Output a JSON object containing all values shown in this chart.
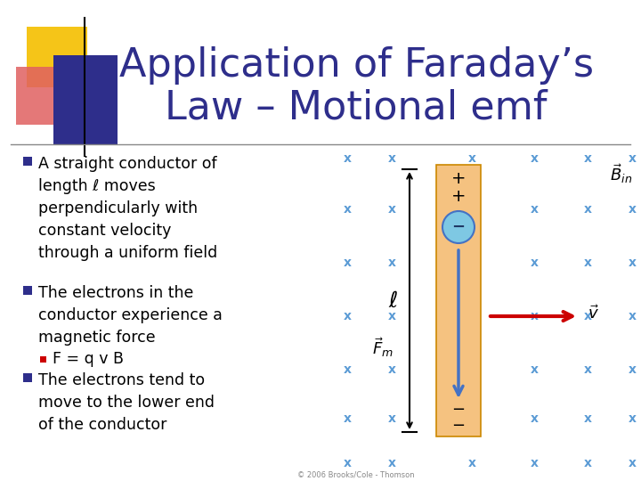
{
  "bg_color": "#ffffff",
  "title_line1": "Application of Faraday’s",
  "title_line2": "Law – Motional emf",
  "title_color": "#2e2e8b",
  "title_fontsize": 32,
  "bullet_color": "#2e2e8b",
  "bullet_fontsize": 12.5,
  "bullets": [
    "A straight conductor of\nlength ℓ moves\nperpendicularly with\nconstant velocity\nthrough a uniform field",
    "The electrons in the\nconductor experience a\nmagnetic force"
  ],
  "sub_bullet": "F = q v B",
  "last_bullet": "The electrons tend to\nmove to the lower end\nof the conductor",
  "x_color": "#5b9bd5",
  "conductor_color": "#f5c280",
  "arrow_color_blue": "#4472c4",
  "arrow_color_red": "#cc0000",
  "electron_color": "#7ec8e3",
  "electron_edge": "#4472c4",
  "copyright": "© 2006 Brooks/Cole - Thomson",
  "sq1_color": "#f5c518",
  "sq2_color": "#e06060",
  "sq3_color": "#2e2e8b",
  "rule_color": "#888888",
  "Fm_color": "#000000",
  "Bin_color": "#000000",
  "v_color": "#000000"
}
